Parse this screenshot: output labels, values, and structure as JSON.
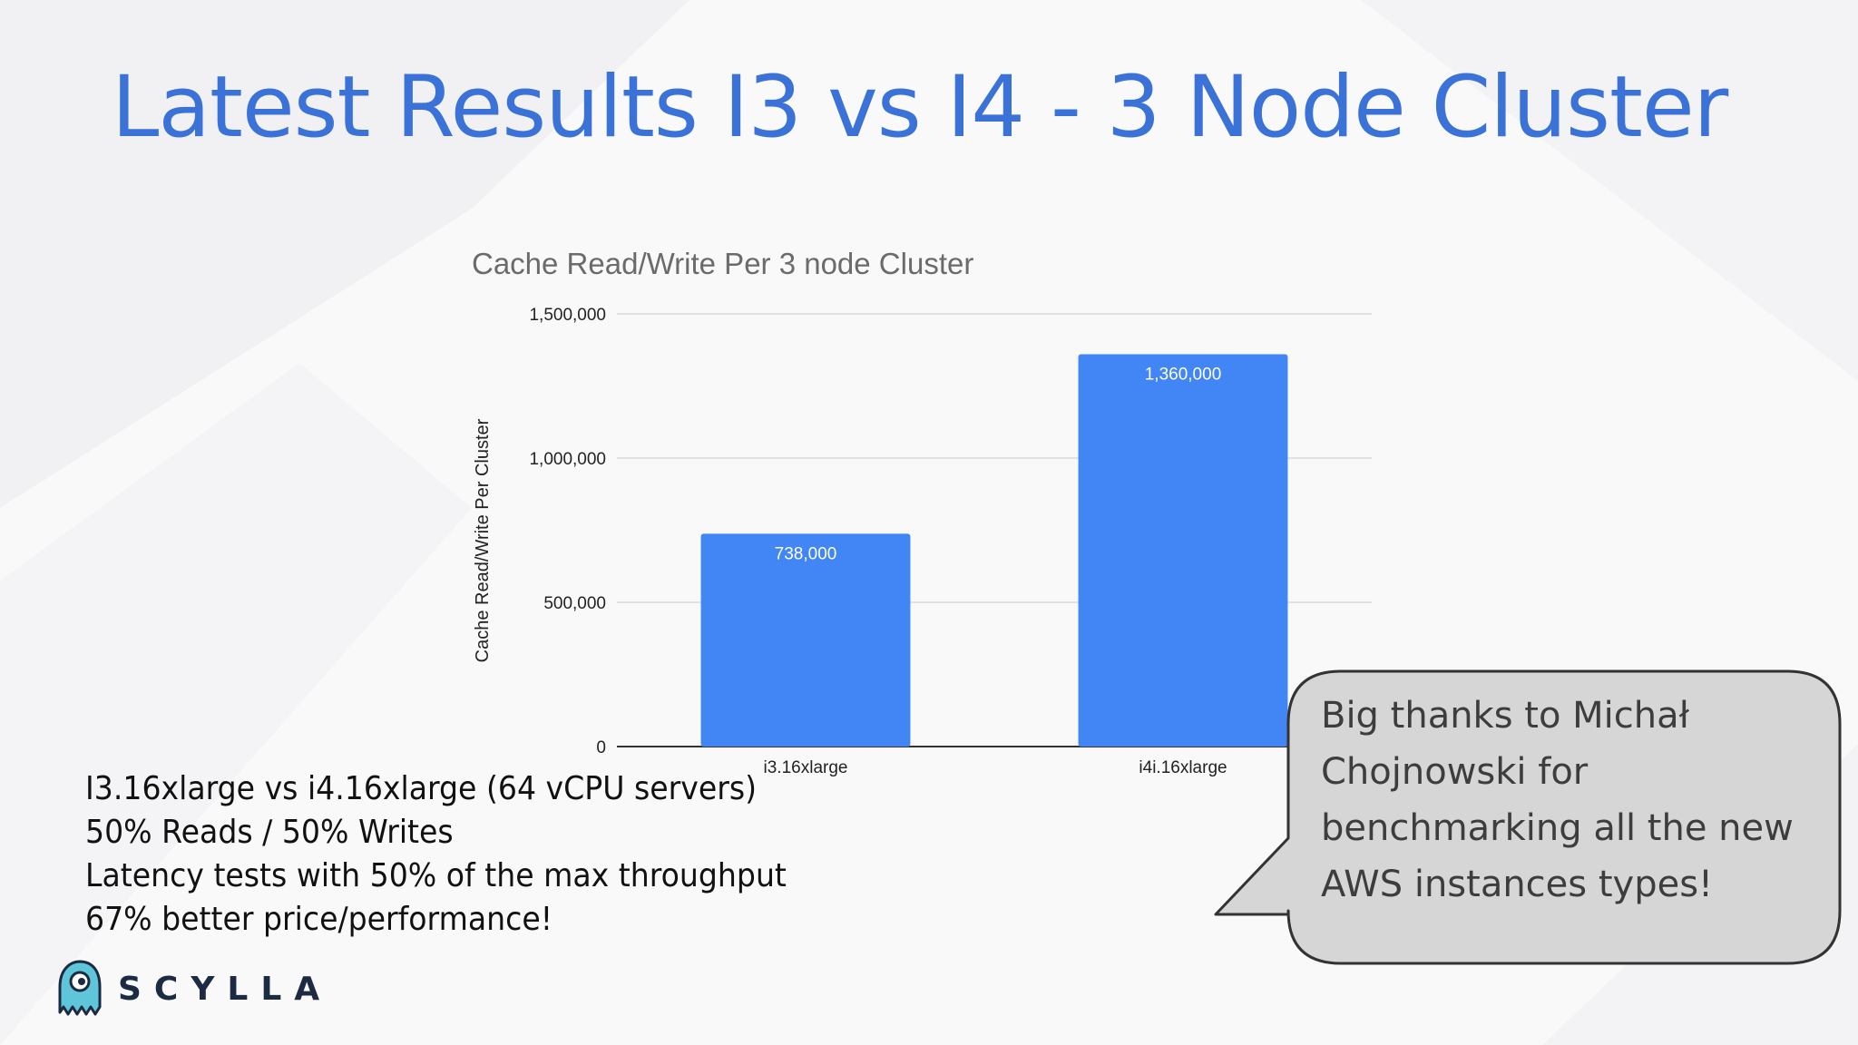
{
  "slide": {
    "title": "Latest Results I3 vs I4 - 3 Node Cluster",
    "notes": [
      "I3.16xlarge vs i4.16xlarge (64 vCPU servers)",
      "50% Reads / 50% Writes",
      "Latency tests with 50% of the max throughput",
      "67% better price/performance!"
    ],
    "callout": "Big thanks to Michał Chojnowski for benchmarking all the new AWS instances types!",
    "logo_text": "SCYLLA"
  },
  "colors": {
    "title": "#3a72d8",
    "bar": "#4285f4",
    "grid": "#d9d9d9",
    "callout_fill": "#d6d6d6",
    "logo_teal": "#5fc5d8",
    "logo_text": "#1c2a42"
  },
  "chart_data": {
    "type": "bar",
    "title": "Cache Read/Write Per 3 node Cluster",
    "ylabel": "Cache Read/Write Per Cluster",
    "xlabel": "",
    "categories": [
      "i3.16xlarge",
      "i4i.16xlarge"
    ],
    "values": [
      738000,
      1360000
    ],
    "data_labels": [
      "738,000",
      "1,360,000"
    ],
    "ylim": [
      0,
      1500000
    ],
    "yticks": [
      0,
      500000,
      1000000,
      1500000
    ],
    "ytick_labels": [
      "0",
      "500,000",
      "1,000,000",
      "1,500,000"
    ],
    "grid": true,
    "legend": "none"
  }
}
